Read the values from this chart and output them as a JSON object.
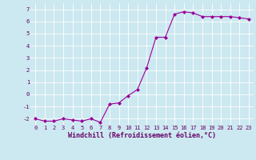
{
  "x": [
    0,
    1,
    2,
    3,
    4,
    5,
    6,
    7,
    8,
    9,
    10,
    11,
    12,
    13,
    14,
    15,
    16,
    17,
    18,
    19,
    20,
    21,
    22,
    23
  ],
  "y": [
    -2.0,
    -2.2,
    -2.2,
    -2.0,
    -2.1,
    -2.2,
    -2.0,
    -2.3,
    -0.8,
    -0.7,
    -0.1,
    0.4,
    2.2,
    4.7,
    4.7,
    6.6,
    6.8,
    6.7,
    6.4,
    6.4,
    6.4,
    6.4,
    6.3,
    6.2
  ],
  "xlabel": "Windchill (Refroidissement éolien,°C)",
  "ylabel": "",
  "xlim": [
    -0.5,
    23.5
  ],
  "ylim": [
    -2.5,
    7.5
  ],
  "yticks": [
    -2,
    -1,
    0,
    1,
    2,
    3,
    4,
    5,
    6,
    7
  ],
  "xticks": [
    0,
    1,
    2,
    3,
    4,
    5,
    6,
    7,
    8,
    9,
    10,
    11,
    12,
    13,
    14,
    15,
    16,
    17,
    18,
    19,
    20,
    21,
    22,
    23
  ],
  "line_color": "#990099",
  "marker": "D",
  "marker_size": 2.0,
  "bg_color": "#cce8f0",
  "grid_color": "#ffffff",
  "tick_label_fontsize": 5.0,
  "xlabel_fontsize": 6.0,
  "line_width": 0.8
}
